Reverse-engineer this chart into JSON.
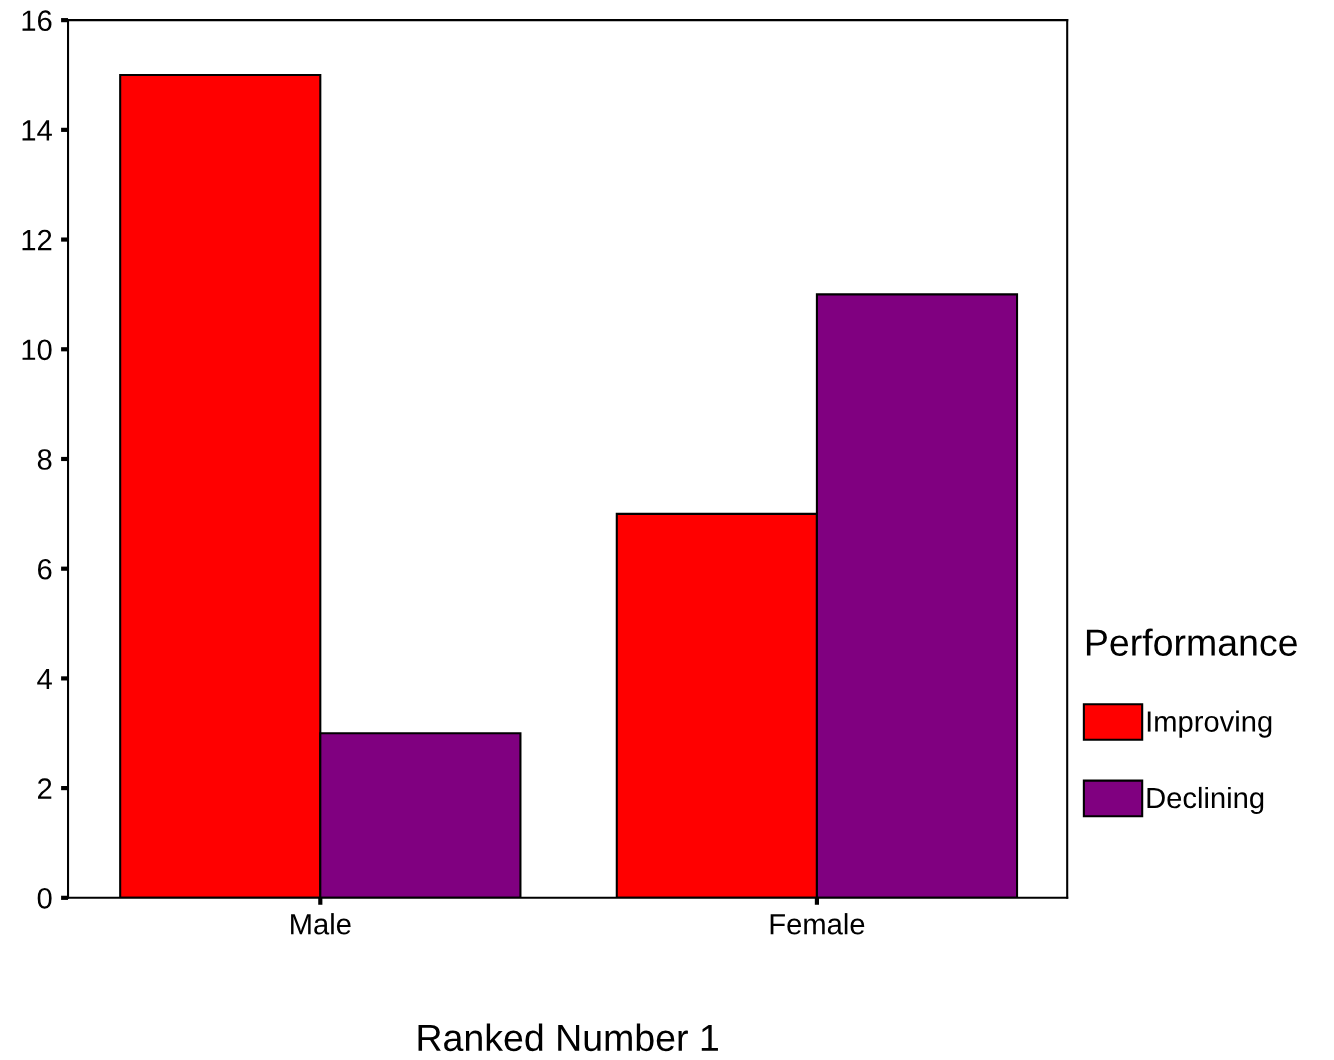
{
  "chart_data": {
    "type": "bar",
    "xlabel": "Ranked Number 1",
    "legend_title": "Performance",
    "categories": [
      "Male",
      "Female"
    ],
    "series": [
      {
        "name": "Improving",
        "color": "#ff0000",
        "values": [
          15,
          7
        ]
      },
      {
        "name": "Declining",
        "color": "#800080",
        "values": [
          3,
          11
        ]
      }
    ],
    "ylim": [
      0,
      16
    ],
    "yticks": [
      0,
      2,
      4,
      6,
      8,
      10,
      12,
      14,
      16
    ],
    "grid": false,
    "legend": "right"
  }
}
